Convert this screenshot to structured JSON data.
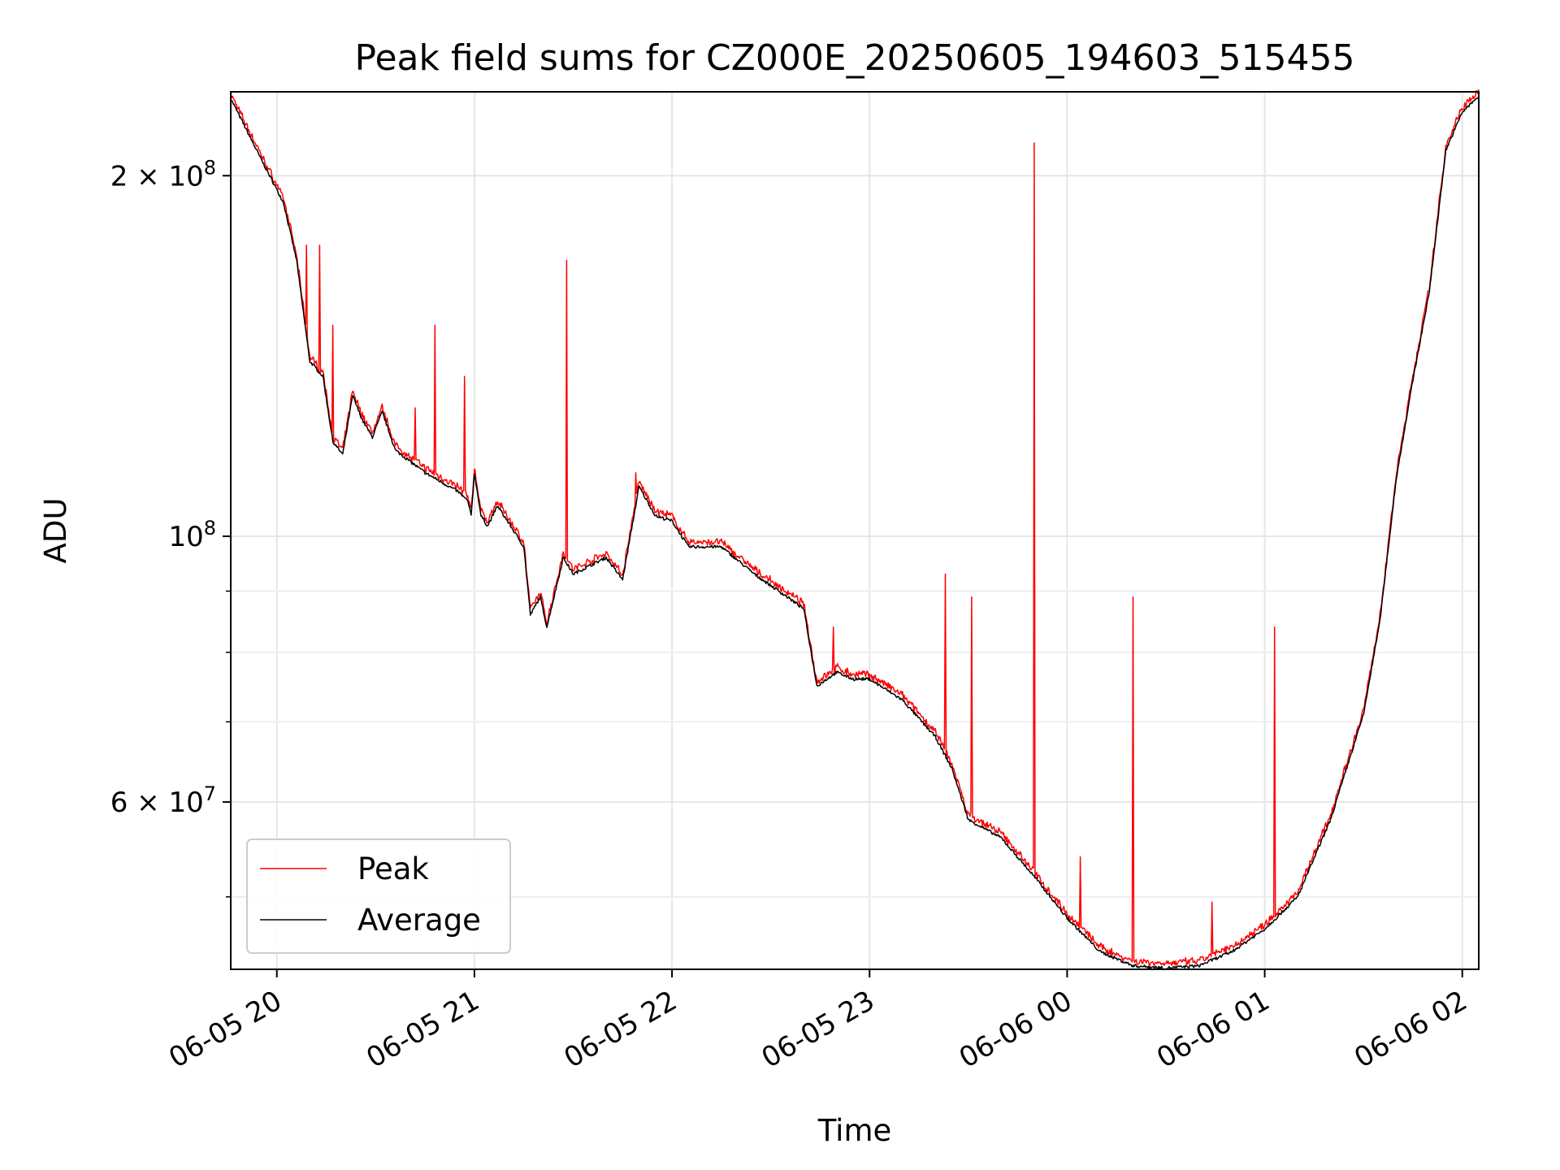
{
  "chart_data": {
    "type": "line",
    "title": "Peak field sums for CZ000E_20250605_194603_515455",
    "xlabel": "Time",
    "ylabel": "ADU",
    "x_range": [
      "2025-06-05 19:46",
      "2025-06-06 02:05"
    ],
    "y_scale": "log",
    "ylim": [
      43500000,
      235000000
    ],
    "grid": true,
    "legend": "lower-left",
    "x_ticks": [
      {
        "t": "2025-06-05 20:00",
        "label": "06-05 20"
      },
      {
        "t": "2025-06-05 21:00",
        "label": "06-05 21"
      },
      {
        "t": "2025-06-05 22:00",
        "label": "06-05 22"
      },
      {
        "t": "2025-06-05 23:00",
        "label": "06-05 23"
      },
      {
        "t": "2025-06-06 00:00",
        "label": "06-06 00"
      },
      {
        "t": "2025-06-06 01:00",
        "label": "06-06 01"
      },
      {
        "t": "2025-06-06 02:00",
        "label": "06-06 02"
      }
    ],
    "y_ticks_major": [
      {
        "value": 200000000,
        "mantissa": "2",
        "base": "10",
        "exp": "8"
      },
      {
        "value": 100000000,
        "mantissa": "",
        "base": "10",
        "exp": "8"
      },
      {
        "value": 60000000,
        "mantissa": "6",
        "base": "10",
        "exp": "7"
      }
    ],
    "y_ticks_minor": [
      50000000,
      70000000,
      80000000,
      90000000
    ],
    "series": [
      {
        "name": "Peak",
        "color": "#ff0000"
      },
      {
        "name": "Average",
        "color": "#000000"
      }
    ],
    "average": [
      [
        "2025-06-05 19:46",
        232000000
      ],
      [
        "2025-06-05 19:55",
        207000000
      ],
      [
        "2025-06-05 20:02",
        190000000
      ],
      [
        "2025-06-05 20:06",
        170000000
      ],
      [
        "2025-06-05 20:10",
        140000000
      ],
      [
        "2025-06-05 20:14",
        136000000
      ],
      [
        "2025-06-05 20:17",
        120000000
      ],
      [
        "2025-06-05 20:20",
        117000000
      ],
      [
        "2025-06-05 20:23",
        131000000
      ],
      [
        "2025-06-05 20:26",
        125000000
      ],
      [
        "2025-06-05 20:29",
        121000000
      ],
      [
        "2025-06-05 20:32",
        127000000
      ],
      [
        "2025-06-05 20:36",
        118000000
      ],
      [
        "2025-06-05 20:45",
        113000000
      ],
      [
        "2025-06-05 20:55",
        109000000
      ],
      [
        "2025-06-05 20:58",
        107000000
      ],
      [
        "2025-06-05 20:59",
        104000000
      ],
      [
        "2025-06-05 21:00",
        113000000
      ],
      [
        "2025-06-05 21:02",
        104000000
      ],
      [
        "2025-06-05 21:04",
        102000000
      ],
      [
        "2025-06-05 21:07",
        106000000
      ],
      [
        "2025-06-05 21:10",
        103000000
      ],
      [
        "2025-06-05 21:15",
        98000000
      ],
      [
        "2025-06-05 21:17",
        86000000
      ],
      [
        "2025-06-05 21:20",
        89000000
      ],
      [
        "2025-06-05 21:22",
        84000000
      ],
      [
        "2025-06-05 21:27",
        96000000
      ],
      [
        "2025-06-05 21:30",
        93000000
      ],
      [
        "2025-06-05 21:40",
        96000000
      ],
      [
        "2025-06-05 21:45",
        92000000
      ],
      [
        "2025-06-05 21:50",
        110000000
      ],
      [
        "2025-06-05 21:55",
        104000000
      ],
      [
        "2025-06-05 22:00",
        103000000
      ],
      [
        "2025-06-05 22:05",
        98000000
      ],
      [
        "2025-06-05 22:15",
        98000000
      ],
      [
        "2025-06-05 22:25",
        93000000
      ],
      [
        "2025-06-05 22:35",
        89000000
      ],
      [
        "2025-06-05 22:40",
        87000000
      ],
      [
        "2025-06-05 22:44",
        75000000
      ],
      [
        "2025-06-05 22:50",
        77000000
      ],
      [
        "2025-06-05 22:55",
        76000000
      ],
      [
        "2025-06-05 23:00",
        76000000
      ],
      [
        "2025-06-05 23:10",
        73000000
      ],
      [
        "2025-06-05 23:20",
        68000000
      ],
      [
        "2025-06-05 23:25",
        64000000
      ],
      [
        "2025-06-05 23:30",
        58000000
      ],
      [
        "2025-06-05 23:40",
        56000000
      ],
      [
        "2025-06-05 23:50",
        52000000
      ],
      [
        "2025-06-06 00:00",
        48000000
      ],
      [
        "2025-06-06 00:10",
        45000000
      ],
      [
        "2025-06-06 00:20",
        43800000
      ],
      [
        "2025-06-06 00:30",
        43600000
      ],
      [
        "2025-06-06 00:40",
        43800000
      ],
      [
        "2025-06-06 00:50",
        45000000
      ],
      [
        "2025-06-06 01:00",
        47000000
      ],
      [
        "2025-06-06 01:10",
        50000000
      ],
      [
        "2025-06-06 01:20",
        58000000
      ],
      [
        "2025-06-06 01:30",
        71000000
      ],
      [
        "2025-06-06 01:35",
        85000000
      ],
      [
        "2025-06-06 01:40",
        112000000
      ],
      [
        "2025-06-06 01:45",
        135000000
      ],
      [
        "2025-06-06 01:50",
        160000000
      ],
      [
        "2025-06-06 01:55",
        210000000
      ],
      [
        "2025-06-06 02:00",
        226000000
      ],
      [
        "2025-06-06 02:05",
        233000000
      ]
    ],
    "peak_spikes": [
      [
        "2025-06-05 20:09",
        175000000
      ],
      [
        "2025-06-05 20:13",
        175000000
      ],
      [
        "2025-06-05 20:17",
        150000000
      ],
      [
        "2025-06-05 20:42",
        128000000
      ],
      [
        "2025-06-05 20:48",
        150000000
      ],
      [
        "2025-06-05 20:57",
        136000000
      ],
      [
        "2025-06-05 21:28",
        170000000
      ],
      [
        "2025-06-05 21:49",
        113000000
      ],
      [
        "2025-06-05 22:49",
        84000000
      ],
      [
        "2025-06-05 23:23",
        93000000
      ],
      [
        "2025-06-05 23:31",
        89000000
      ],
      [
        "2025-06-05 23:50",
        213000000
      ],
      [
        "2025-06-06 00:04",
        54000000
      ],
      [
        "2025-06-06 00:20",
        89000000
      ],
      [
        "2025-06-06 00:44",
        49500000
      ],
      [
        "2025-06-06 01:03",
        84000000
      ]
    ]
  }
}
